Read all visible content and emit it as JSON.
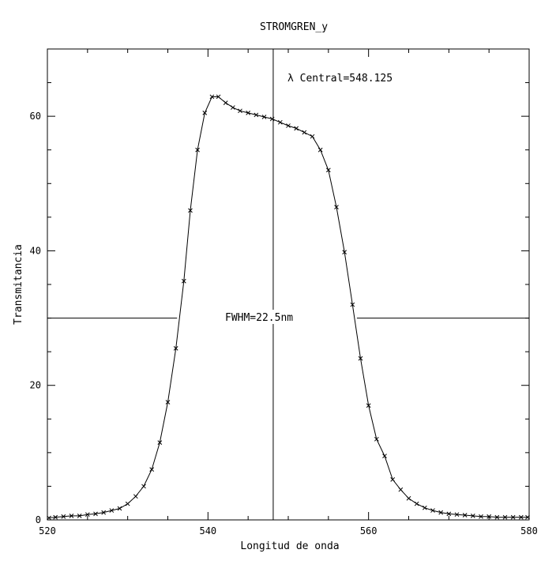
{
  "chart_data": {
    "type": "line",
    "title": "STROMGREN_y",
    "xlabel": "Longitud de onda",
    "ylabel": "Transmitancia",
    "xlim": [
      520,
      580
    ],
    "ylim": [
      0,
      70
    ],
    "grid": false,
    "x_ticks": [
      520,
      540,
      560,
      580
    ],
    "y_ticks": [
      0,
      20,
      40,
      60
    ],
    "annotations": {
      "central": "λ Central=548.125",
      "fwhm": "FWHM=22.5nm"
    },
    "central_wavelength": 548.125,
    "half_max_level": 30,
    "series": [
      {
        "marker": "x",
        "x": [
          520.2,
          521.0,
          522.0,
          523.0,
          524.0,
          525.0,
          526.0,
          527.0,
          528.0,
          529.0,
          530.0,
          531.0,
          532.0,
          533.0,
          534.0,
          535.0,
          536.0,
          537.0,
          537.8,
          538.7,
          539.6,
          540.5,
          541.3,
          542.2,
          543.1,
          544.0,
          545.0,
          546.0,
          547.0,
          548.0,
          549.0,
          550.0,
          551.0,
          552.0,
          553.0,
          554.0,
          555.0,
          556.0,
          557.0,
          558.0,
          559.0,
          560.0,
          561.0,
          562.0,
          563.0,
          564.0,
          565.0,
          566.0,
          567.0,
          568.0,
          569.0,
          570.0,
          571.0,
          572.0,
          573.0,
          574.0,
          575.0,
          576.0,
          577.0,
          578.0,
          579.0,
          579.8
        ],
        "y": [
          0.3,
          0.4,
          0.5,
          0.6,
          0.6,
          0.8,
          0.9,
          1.1,
          1.4,
          1.7,
          2.4,
          3.5,
          5.0,
          7.5,
          11.5,
          17.5,
          25.5,
          35.5,
          46.0,
          55.0,
          60.5,
          62.9,
          62.9,
          62.0,
          61.3,
          60.8,
          60.5,
          60.2,
          59.9,
          59.6,
          59.1,
          58.6,
          58.2,
          57.6,
          57.0,
          55.0,
          52.0,
          46.5,
          39.8,
          32.0,
          24.0,
          17.0,
          12.0,
          9.5,
          6.0,
          4.5,
          3.2,
          2.4,
          1.8,
          1.4,
          1.1,
          0.9,
          0.8,
          0.7,
          0.6,
          0.5,
          0.5,
          0.4,
          0.4,
          0.4,
          0.4,
          0.4
        ]
      }
    ]
  }
}
